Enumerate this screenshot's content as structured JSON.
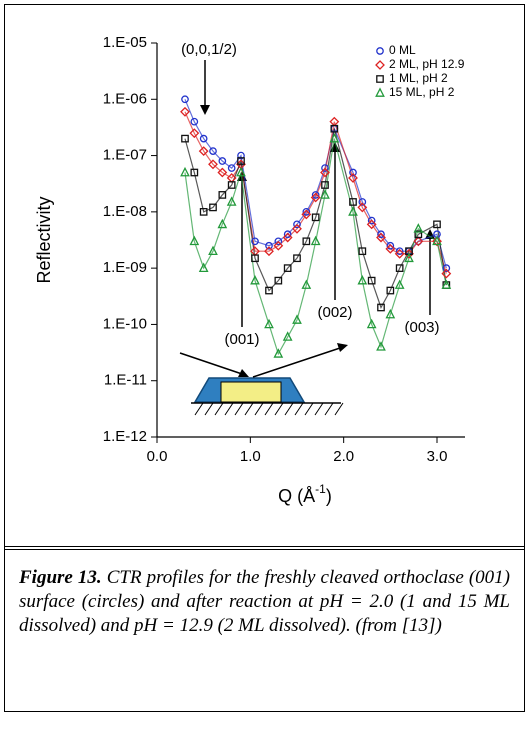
{
  "chart_data": {
    "type": "scatter",
    "y_label": "Reflectivity",
    "x_label": {
      "text": "Q (Å",
      "superscript": "-1",
      "suffix": ")"
    },
    "ylog": true,
    "ylim": [
      1e-12,
      1e-05
    ],
    "yticks": [
      {
        "value": 1e-12,
        "label": "1.E-12"
      },
      {
        "value": 1e-11,
        "label": "1.E-11"
      },
      {
        "value": 1e-10,
        "label": "1.E-10"
      },
      {
        "value": 1e-09,
        "label": "1.E-09"
      },
      {
        "value": 1e-08,
        "label": "1.E-08"
      },
      {
        "value": 1e-07,
        "label": "1.E-07"
      },
      {
        "value": 1e-06,
        "label": "1.E-06"
      },
      {
        "value": 1e-05,
        "label": "1.E-05"
      }
    ],
    "xlim": [
      0,
      3.3
    ],
    "xticks": [
      {
        "value": 0,
        "label": "0.0"
      },
      {
        "value": 1,
        "label": "1.0"
      },
      {
        "value": 2,
        "label": "2.0"
      },
      {
        "value": 3,
        "label": "3.0"
      }
    ],
    "legend": "upper right",
    "x": [
      0.3,
      0.4,
      0.5,
      0.6,
      0.7,
      0.8,
      0.9,
      1.05,
      1.2,
      1.3,
      1.4,
      1.5,
      1.6,
      1.7,
      1.8,
      1.9,
      2.1,
      2.2,
      2.3,
      2.4,
      2.5,
      2.6,
      2.7,
      2.8,
      3.0,
      3.1
    ],
    "series": [
      {
        "name": "0 ML",
        "color": "#2233cc",
        "marker": "circle",
        "values": [
          1e-06,
          4e-07,
          2e-07,
          1.2e-07,
          8e-08,
          6e-08,
          1e-07,
          3e-09,
          2.5e-09,
          3e-09,
          4e-09,
          6e-09,
          1e-08,
          2e-08,
          6e-08,
          3e-07,
          5e-08,
          1.5e-08,
          7e-09,
          4e-09,
          2.5e-09,
          2e-09,
          2e-09,
          3e-09,
          4e-09,
          1e-09
        ]
      },
      {
        "name": "2 ML,  pH 12.9",
        "color": "#dd2222",
        "marker": "diamond",
        "values": [
          6e-07,
          2.5e-07,
          1.2e-07,
          7e-08,
          5e-08,
          4e-08,
          7e-08,
          2e-09,
          2e-09,
          2.5e-09,
          3.5e-09,
          5e-09,
          9e-09,
          1.8e-08,
          5e-08,
          4e-07,
          4e-08,
          1.2e-08,
          6e-09,
          3.5e-09,
          2.2e-09,
          1.8e-09,
          1.8e-09,
          3e-09,
          3e-09,
          8e-10
        ]
      },
      {
        "name": "1 ML, pH 2",
        "color": "#111111",
        "marker": "square",
        "values": [
          2e-07,
          5e-08,
          1e-08,
          1.2e-08,
          2e-08,
          3e-08,
          8e-08,
          1.5e-09,
          4e-10,
          6e-10,
          1e-09,
          1.5e-09,
          3e-09,
          8e-09,
          3e-08,
          3e-07,
          1.5e-08,
          2e-09,
          6e-10,
          2e-10,
          4e-10,
          1e-09,
          2e-09,
          4e-09,
          6e-09,
          5e-10
        ]
      },
      {
        "name": "15 ML, pH 2",
        "color": "#22993a",
        "marker": "triangle",
        "values": [
          5e-08,
          3e-09,
          1e-09,
          2e-09,
          6e-09,
          1.5e-08,
          5e-08,
          6e-10,
          1e-10,
          3e-11,
          6e-11,
          1.2e-10,
          5e-10,
          3e-09,
          2e-08,
          2e-07,
          1e-08,
          6e-10,
          1e-10,
          4e-11,
          1.5e-10,
          5e-10,
          1.5e-09,
          5e-09,
          3e-09,
          5e-10
        ]
      }
    ],
    "annotations": [
      "(0,0,1/2)",
      "(001)",
      "(002)",
      "(003)"
    ]
  },
  "caption": {
    "label": "Figure 13.",
    "text": "CTR profiles for the freshly cleaved orthoclase (001) surface (circles) and after reaction at pH = 2.0 (1 and 15 ML dissolved) and pH = 12.9 (2 ML dissolved). (from [13])"
  }
}
